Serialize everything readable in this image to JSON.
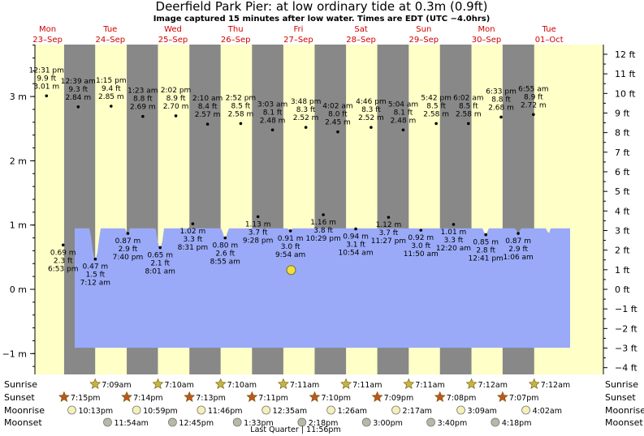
{
  "chart_data": {
    "type": "area",
    "title": "Deerfield Park Pier: at low  ordinary tide at 0.3m (0.9ft)",
    "subtitle": "Image captured 15 minutes after low water. Times are EDT (UTC −4.0hrs)",
    "days": [
      {
        "dow": "Mon",
        "date": "23–Sep"
      },
      {
        "dow": "Tue",
        "date": "24–Sep"
      },
      {
        "dow": "Wed",
        "date": "25–Sep"
      },
      {
        "dow": "Thu",
        "date": "26–Sep"
      },
      {
        "dow": "Fri",
        "date": "27–Sep"
      },
      {
        "dow": "Sat",
        "date": "28–Sep"
      },
      {
        "dow": "Sun",
        "date": "29–Sep"
      },
      {
        "dow": "Mon",
        "date": "30–Sep"
      },
      {
        "dow": "Tue",
        "date": "01–Oct"
      }
    ],
    "y_left": {
      "unit": "m",
      "ticks": [
        3,
        2,
        1,
        0,
        -1
      ],
      "tick_labels": [
        "3 m",
        "2 m",
        "1 m",
        "0 m",
        "−1 m"
      ],
      "range": [
        -1.28,
        3.9
      ]
    },
    "y_right": {
      "unit": "ft",
      "ticks": [
        12,
        11,
        10,
        9,
        8,
        7,
        6,
        5,
        4,
        3,
        2,
        1,
        0,
        -1,
        -2,
        -3,
        -4
      ],
      "tick_labels": [
        "12 ft",
        "11 ft",
        "10 ft",
        "9 ft",
        "8 ft",
        "7 ft",
        "6 ft",
        "5 ft",
        "4 ft",
        "3 ft",
        "2 ft",
        "1 ft",
        "0 ft",
        "−1 ft",
        "−2 ft",
        "−3 ft",
        "−4 ft"
      ]
    },
    "tides": [
      {
        "day": 0,
        "time": "12:31 pm",
        "ft": "9.9 ft",
        "m": "3.01 m",
        "height": 3.01,
        "type": "high"
      },
      {
        "day": 0,
        "time": "6:53 pm",
        "ft": "2.3 ft",
        "m": "0.69 m",
        "height": 0.69,
        "type": "low"
      },
      {
        "day": 1,
        "time": "12:39 am",
        "ft": "9.3 ft",
        "m": "2.84 m",
        "height": 2.84,
        "type": "high"
      },
      {
        "day": 1,
        "time": "7:12 am",
        "ft": "1.5 ft",
        "m": "0.47 m",
        "height": 0.47,
        "type": "low"
      },
      {
        "day": 1,
        "time": "1:15 pm",
        "ft": "9.4 ft",
        "m": "2.85 m",
        "height": 2.85,
        "type": "high"
      },
      {
        "day": 1,
        "time": "7:40 pm",
        "ft": "2.9 ft",
        "m": "0.87 m",
        "height": 0.87,
        "type": "low"
      },
      {
        "day": 2,
        "time": "1:23 am",
        "ft": "8.8 ft",
        "m": "2.69 m",
        "height": 2.69,
        "type": "high"
      },
      {
        "day": 2,
        "time": "8:01 am",
        "ft": "2.1 ft",
        "m": "0.65 m",
        "height": 0.65,
        "type": "low"
      },
      {
        "day": 2,
        "time": "2:02 pm",
        "ft": "8.9 ft",
        "m": "2.70 m",
        "height": 2.7,
        "type": "high"
      },
      {
        "day": 2,
        "time": "8:31 pm",
        "ft": "3.3 ft",
        "m": "1.02 m",
        "height": 1.02,
        "type": "low"
      },
      {
        "day": 3,
        "time": "2:10 am",
        "ft": "8.4 ft",
        "m": "2.57 m",
        "height": 2.57,
        "type": "high"
      },
      {
        "day": 3,
        "time": "8:55 am",
        "ft": "2.6 ft",
        "m": "0.80 m",
        "height": 0.8,
        "type": "low"
      },
      {
        "day": 3,
        "time": "2:52 pm",
        "ft": "8.5 ft",
        "m": "2.58 m",
        "height": 2.58,
        "type": "high"
      },
      {
        "day": 3,
        "time": "9:28 pm",
        "ft": "3.7 ft",
        "m": "1.13 m",
        "height": 1.13,
        "type": "low"
      },
      {
        "day": 4,
        "time": "3:03 am",
        "ft": "8.1 ft",
        "m": "2.48 m",
        "height": 2.48,
        "type": "high"
      },
      {
        "day": 4,
        "time": "9:54 am",
        "ft": "3.0 ft",
        "m": "0.91 m",
        "height": 0.91,
        "type": "low"
      },
      {
        "day": 4,
        "time": "3:48 pm",
        "ft": "8.3 ft",
        "m": "2.52 m",
        "height": 2.52,
        "type": "high"
      },
      {
        "day": 4,
        "time": "10:29 pm",
        "ft": "3.8 ft",
        "m": "1.16 m",
        "height": 1.16,
        "type": "low"
      },
      {
        "day": 5,
        "time": "4:02 am",
        "ft": "8.0 ft",
        "m": "2.45 m",
        "height": 2.45,
        "type": "high"
      },
      {
        "day": 5,
        "time": "10:54 am",
        "ft": "3.1 ft",
        "m": "0.94 m",
        "height": 0.94,
        "type": "low"
      },
      {
        "day": 5,
        "time": "4:46 pm",
        "ft": "8.3 ft",
        "m": "2.52 m",
        "height": 2.52,
        "type": "high"
      },
      {
        "day": 5,
        "time": "11:27 pm",
        "ft": "3.7 ft",
        "m": "1.12 m",
        "height": 1.12,
        "type": "low"
      },
      {
        "day": 6,
        "time": "5:04 am",
        "ft": "8.1 ft",
        "m": "2.48 m",
        "height": 2.48,
        "type": "high"
      },
      {
        "day": 6,
        "time": "11:50 am",
        "ft": "3.0 ft",
        "m": "0.92 m",
        "height": 0.92,
        "type": "low"
      },
      {
        "day": 6,
        "time": "5:42 pm",
        "ft": "8.5 ft",
        "m": "2.58 m",
        "height": 2.58,
        "type": "high"
      },
      {
        "day": 7,
        "time": "12:20 am",
        "ft": "3.3 ft",
        "m": "1.01 m",
        "height": 1.01,
        "type": "low"
      },
      {
        "day": 7,
        "time": "6:02 am",
        "ft": "8.5 ft",
        "m": "2.58 m",
        "height": 2.58,
        "type": "high"
      },
      {
        "day": 7,
        "time": "12:41 pm",
        "ft": "2.8 ft",
        "m": "0.85 m",
        "height": 0.85,
        "type": "low"
      },
      {
        "day": 7,
        "time": "6:33 pm",
        "ft": "8.8 ft",
        "m": "2.68 m",
        "height": 2.68,
        "type": "high"
      },
      {
        "day": 8,
        "time": "1:06 am",
        "ft": "2.9 ft",
        "m": "0.87 m",
        "height": 0.87,
        "type": "low"
      },
      {
        "day": 8,
        "time": "6:55 am",
        "ft": "8.9 ft",
        "m": "2.72 m",
        "height": 2.72,
        "type": "high"
      }
    ],
    "current_level_m": 0.3,
    "rows": [
      {
        "label": "Sunrise",
        "icon": "sun-star-icon",
        "color": "#c9b43c",
        "items": [
          "7:09am",
          "7:10am",
          "7:10am",
          "7:11am",
          "7:11am",
          "7:11am",
          "7:12am",
          "7:12am"
        ]
      },
      {
        "label": "Sunset",
        "icon": "sun-star-icon",
        "color": "#c0561b",
        "items": [
          "7:15pm",
          "7:14pm",
          "7:13pm",
          "7:11pm",
          "7:10pm",
          "7:09pm",
          "7:08pm",
          "7:07pm"
        ]
      },
      {
        "label": "Moonrise",
        "icon": "moon-circle-icon",
        "color": "#f4f0b8",
        "items": [
          "10:13pm",
          "10:59pm",
          "11:46pm",
          "12:35am",
          "1:26am",
          "2:17am",
          "3:09am",
          "4:02am"
        ]
      },
      {
        "label": "Moonset",
        "icon": "moon-circle-icon",
        "color": "#b8b8a8",
        "items": [
          "11:54am",
          "12:45pm",
          "1:33pm",
          "2:18pm",
          "3:00pm",
          "3:40pm",
          "4:18pm"
        ]
      }
    ],
    "moon_phase_note": "Last Quarter | 11:56pm"
  },
  "colors": {
    "day": "#ffffc8",
    "night": "#888888",
    "water": "#9aaaf8",
    "water_marker": "#f0e040",
    "day_label": "#d00000"
  }
}
